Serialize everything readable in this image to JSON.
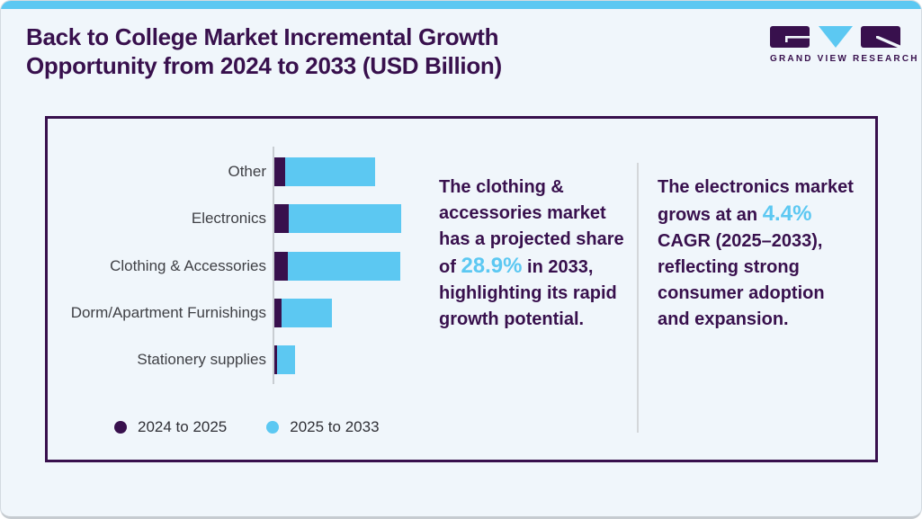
{
  "page": {
    "title_line1": "Back to College Market Incremental Growth",
    "title_line2": "Opportunity from 2024 to 2033 (USD Billion)"
  },
  "logo": {
    "brand_text": "GRAND VIEW RESEARCH",
    "mark_colors": {
      "left": "#38104d",
      "middle": "#5cc8f2",
      "right": "#38104d"
    }
  },
  "chart_data": {
    "type": "bar",
    "orientation": "horizontal",
    "stacked": true,
    "title": "Back to College Market Incremental Growth Opportunity from 2024 to 2033 (USD Billion)",
    "categories": [
      "Other",
      "Electronics",
      "Clothing & Accessories",
      "Dorm/Apartment Furnishings",
      "Stationery supplies"
    ],
    "series": [
      {
        "name": "2024 to 2025",
        "color": "#38104d",
        "values": [
          12,
          16,
          15,
          8,
          3
        ]
      },
      {
        "name": "2025 to 2033",
        "color": "#5cc8f2",
        "values": [
          100,
          125,
          125,
          56,
          20
        ]
      }
    ],
    "value_axis_hidden": true,
    "xlim": [
      0,
      145
    ],
    "note": "No numeric value axis is shown in the figure; series values are relative bar-length estimates.",
    "legend_position": "bottom-left",
    "grid": false
  },
  "legend": {
    "items": [
      {
        "label": "2024 to 2025",
        "color": "#38104d"
      },
      {
        "label": "2025 to 2033",
        "color": "#5cc8f2"
      }
    ]
  },
  "insights": [
    {
      "prefix": "The clothing & accessories market has a projected share of ",
      "highlight": "28.9%",
      "suffix": " in 2033, highlighting its rapid growth potential."
    },
    {
      "prefix": "The electronics market grows at an ",
      "highlight": "4.4%",
      "suffix": " CAGR (2025–2033), reflecting strong consumer adoption and expansion."
    }
  ],
  "colors": {
    "purple": "#38104d",
    "blue": "#5cc8f2",
    "background": "#f0f6fb",
    "label_text": "#3f4045",
    "axis_line": "#c8cdd2"
  }
}
